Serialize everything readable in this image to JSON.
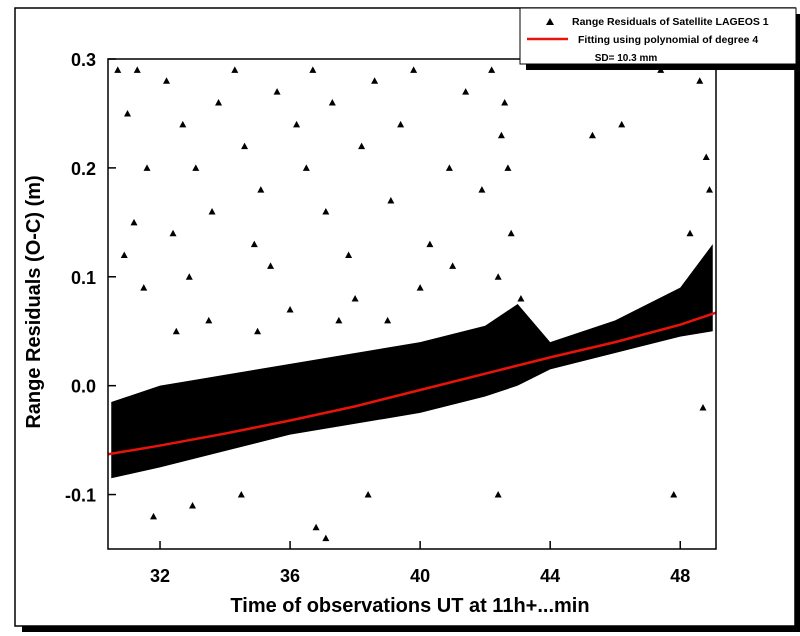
{
  "chart_data": {
    "type": "scatter",
    "xlabel": "Time of observations UT at 11h+...min",
    "ylabel": "Range Residuals (O-C) (m)",
    "xlim": [
      30.4,
      49.1
    ],
    "ylim": [
      -0.15,
      0.3
    ],
    "x_ticks": [
      32,
      36,
      40,
      44,
      48
    ],
    "x_tick_labels": [
      "32",
      "36",
      "40",
      "44",
      "48"
    ],
    "y_ticks": [
      -0.1,
      0.0,
      0.1,
      0.2,
      0.3
    ],
    "y_tick_labels": [
      "-0.1",
      "0.0",
      "0.1",
      "0.2",
      "0.3"
    ],
    "legend_position": "top-right",
    "series": [
      {
        "name": "Range Residuals of Satellite LAGEOS 1",
        "kind": "scatter",
        "marker": "triangle",
        "color": "#000000",
        "band": {
          "x": [
            30.5,
            32,
            34,
            36,
            38,
            40,
            42,
            43,
            44,
            46,
            48,
            49
          ],
          "y_low": [
            -0.085,
            -0.075,
            -0.06,
            -0.045,
            -0.035,
            -0.025,
            -0.01,
            0.0,
            0.015,
            0.03,
            0.045,
            0.05
          ],
          "y_high": [
            -0.015,
            0.0,
            0.01,
            0.02,
            0.03,
            0.04,
            0.055,
            0.075,
            0.04,
            0.06,
            0.09,
            0.13
          ]
        },
        "points": [
          [
            30.7,
            0.29
          ],
          [
            31.0,
            0.25
          ],
          [
            31.3,
            0.29
          ],
          [
            31.6,
            0.2
          ],
          [
            31.2,
            0.15
          ],
          [
            30.9,
            0.12
          ],
          [
            31.5,
            0.09
          ],
          [
            32.2,
            0.28
          ],
          [
            32.7,
            0.24
          ],
          [
            33.1,
            0.2
          ],
          [
            32.4,
            0.14
          ],
          [
            33.6,
            0.16
          ],
          [
            32.9,
            0.1
          ],
          [
            33.8,
            0.26
          ],
          [
            34.3,
            0.29
          ],
          [
            34.6,
            0.22
          ],
          [
            35.1,
            0.18
          ],
          [
            34.9,
            0.13
          ],
          [
            35.6,
            0.27
          ],
          [
            35.4,
            0.11
          ],
          [
            36.2,
            0.24
          ],
          [
            36.7,
            0.29
          ],
          [
            36.5,
            0.2
          ],
          [
            37.1,
            0.16
          ],
          [
            37.3,
            0.26
          ],
          [
            37.8,
            0.12
          ],
          [
            38.2,
            0.22
          ],
          [
            38.6,
            0.28
          ],
          [
            39.1,
            0.17
          ],
          [
            39.4,
            0.24
          ],
          [
            39.8,
            0.29
          ],
          [
            40.3,
            0.13
          ],
          [
            40.9,
            0.2
          ],
          [
            41.4,
            0.27
          ],
          [
            41.9,
            0.18
          ],
          [
            42.2,
            0.29
          ],
          [
            42.5,
            0.23
          ],
          [
            42.7,
            0.2
          ],
          [
            42.8,
            0.14
          ],
          [
            42.4,
            0.1
          ],
          [
            43.1,
            0.08
          ],
          [
            42.6,
            0.26
          ],
          [
            45.3,
            0.23
          ],
          [
            46.2,
            0.24
          ],
          [
            47.4,
            0.29
          ],
          [
            48.6,
            0.28
          ],
          [
            48.8,
            0.21
          ],
          [
            48.3,
            0.14
          ],
          [
            48.9,
            0.18
          ],
          [
            31.8,
            -0.12
          ],
          [
            33.0,
            -0.11
          ],
          [
            34.5,
            -0.1
          ],
          [
            37.1,
            -0.14
          ],
          [
            36.8,
            -0.13
          ],
          [
            38.4,
            -0.1
          ],
          [
            42.4,
            -0.1
          ],
          [
            47.8,
            -0.1
          ],
          [
            48.7,
            -0.02
          ],
          [
            32.5,
            0.05
          ],
          [
            33.5,
            0.06
          ],
          [
            36.0,
            0.07
          ],
          [
            38.0,
            0.08
          ],
          [
            40.0,
            0.09
          ],
          [
            41.0,
            0.11
          ],
          [
            39.0,
            0.06
          ],
          [
            35.0,
            0.05
          ],
          [
            37.5,
            0.06
          ],
          [
            43.5,
            0.05
          ]
        ]
      },
      {
        "name": "Fitting using polynomial of degree 4",
        "kind": "line",
        "color": "#e8140c",
        "x": [
          30.4,
          32,
          34,
          36,
          38,
          40,
          42,
          44,
          46,
          48,
          49.1
        ],
        "y": [
          -0.063,
          -0.055,
          -0.044,
          -0.032,
          -0.019,
          -0.004,
          0.011,
          0.026,
          0.04,
          0.056,
          0.067
        ]
      }
    ],
    "annotation": "SD= 10.3 mm"
  }
}
